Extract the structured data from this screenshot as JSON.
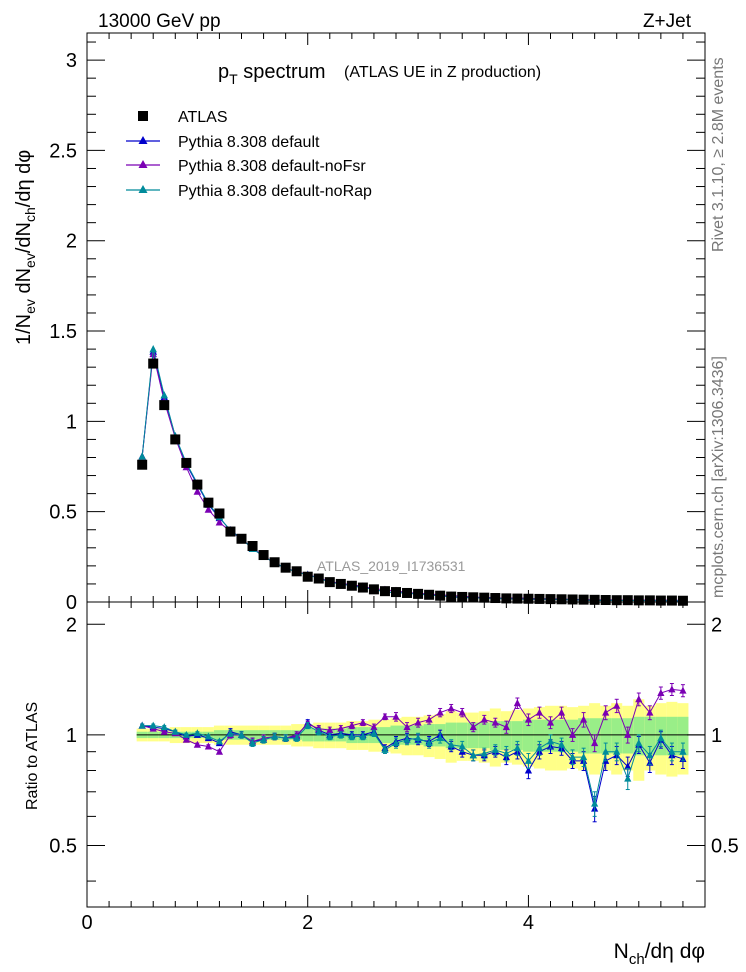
{
  "header": {
    "energy_label": "13000 GeV pp",
    "process_label": "Z+Jet"
  },
  "side_labels": {
    "rivet": "Rivet 3.1.10, ≥ 2.8M events",
    "mcplots": "mcplots.cern.ch [arXiv:1306.3436]"
  },
  "chart_data": {
    "type": "scatter",
    "title_main": "p",
    "title_sub": "T",
    "title_rest": " spectrum",
    "title_note": "(ATLAS UE in Z production)",
    "watermark": "ATLAS_2019_I1736531",
    "ylabel_main": "1/N",
    "ylabel_parts": [
      "ev",
      " dN",
      "ev",
      "/dN",
      "ch",
      "/dη dφ"
    ],
    "ratio_ylabel": "Ratio to ATLAS",
    "xlabel_main": "N",
    "xlabel_sub": "ch",
    "xlabel_rest": "/dη dφ",
    "xlim": [
      0,
      5.6
    ],
    "ylim_main": [
      0,
      3.15
    ],
    "ylim_ratio": [
      0.34,
      2.3
    ],
    "x_ticks": [
      0,
      2,
      4
    ],
    "x_tick_labels": [
      "0",
      "2",
      "4"
    ],
    "y_ticks_main": [
      0,
      0.5,
      1,
      1.5,
      2,
      2.5,
      3
    ],
    "y_tick_labels_main": [
      "0",
      "0.5",
      "1",
      "1.5",
      "2",
      "2.5",
      "3"
    ],
    "y_ticks_ratio": [
      0.5,
      1,
      2
    ],
    "y_tick_labels_ratio": [
      "0.5",
      "1",
      "2"
    ],
    "legend": {
      "position": "top-left",
      "entries": [
        {
          "label": "ATLAS",
          "marker": "square",
          "color": "#000000"
        },
        {
          "label": "Pythia 8.308 default",
          "marker": "triangle",
          "color": "#0000cc"
        },
        {
          "label": "Pythia 8.308 default-noFsr",
          "marker": "triangle",
          "color": "#7b00b4"
        },
        {
          "label": "Pythia 8.308 default-noRap",
          "marker": "triangle",
          "color": "#008b9b"
        }
      ]
    },
    "x": [
      0.5,
      0.6,
      0.7,
      0.8,
      0.9,
      1.0,
      1.1,
      1.2,
      1.3,
      1.4,
      1.5,
      1.6,
      1.7,
      1.8,
      1.9,
      2.0,
      2.1,
      2.2,
      2.3,
      2.4,
      2.5,
      2.6,
      2.7,
      2.8,
      2.9,
      3.0,
      3.1,
      3.2,
      3.3,
      3.4,
      3.5,
      3.6,
      3.7,
      3.8,
      3.9,
      4.0,
      4.1,
      4.2,
      4.3,
      4.4,
      4.5,
      4.6,
      4.7,
      4.8,
      4.9,
      5.0,
      5.1,
      5.2,
      5.3,
      5.4
    ],
    "atlas_values": [
      0.76,
      1.32,
      1.09,
      0.9,
      0.77,
      0.65,
      0.55,
      0.49,
      0.39,
      0.35,
      0.31,
      0.26,
      0.22,
      0.19,
      0.17,
      0.14,
      0.13,
      0.11,
      0.1,
      0.09,
      0.08,
      0.07,
      0.06,
      0.055,
      0.05,
      0.045,
      0.04,
      0.035,
      0.03,
      0.028,
      0.026,
      0.024,
      0.022,
      0.02,
      0.019,
      0.018,
      0.017,
      0.016,
      0.015,
      0.014,
      0.013,
      0.012,
      0.011,
      0.01,
      0.01,
      0.009,
      0.009,
      0.008,
      0.008,
      0.007
    ],
    "band_total": [
      0.04,
      0.04,
      0.04,
      0.05,
      0.05,
      0.05,
      0.05,
      0.06,
      0.06,
      0.06,
      0.06,
      0.06,
      0.06,
      0.06,
      0.07,
      0.07,
      0.08,
      0.08,
      0.08,
      0.09,
      0.09,
      0.1,
      0.1,
      0.11,
      0.12,
      0.12,
      0.13,
      0.14,
      0.16,
      0.15,
      0.15,
      0.16,
      0.18,
      0.16,
      0.17,
      0.18,
      0.19,
      0.2,
      0.2,
      0.19,
      0.2,
      0.22,
      0.2,
      0.22,
      0.2,
      0.25,
      0.2,
      0.22,
      0.23,
      0.22
    ],
    "band_stat": [
      0.02,
      0.02,
      0.02,
      0.02,
      0.02,
      0.02,
      0.02,
      0.03,
      0.03,
      0.03,
      0.03,
      0.03,
      0.03,
      0.03,
      0.03,
      0.04,
      0.04,
      0.04,
      0.04,
      0.05,
      0.05,
      0.05,
      0.05,
      0.06,
      0.06,
      0.06,
      0.07,
      0.07,
      0.08,
      0.08,
      0.08,
      0.08,
      0.09,
      0.09,
      0.09,
      0.1,
      0.1,
      0.1,
      0.1,
      0.1,
      0.11,
      0.11,
      0.11,
      0.11,
      0.11,
      0.12,
      0.12,
      0.12,
      0.12,
      0.12
    ],
    "series": [
      {
        "name": "Pythia 8.308 default",
        "color": "#0000cc",
        "ratio": [
          1.06,
          1.05,
          1.04,
          1.02,
          0.99,
          1.0,
          0.98,
          0.95,
          1.02,
          1.0,
          0.96,
          0.97,
          0.99,
          0.98,
          0.99,
          1.08,
          1.03,
          1.0,
          1.01,
          1.0,
          1.0,
          1.02,
          0.92,
          0.96,
          0.98,
          0.97,
          0.96,
          1.0,
          0.93,
          0.9,
          0.88,
          0.88,
          0.9,
          0.87,
          0.9,
          0.8,
          0.9,
          0.93,
          0.92,
          0.85,
          0.85,
          0.63,
          0.85,
          0.88,
          0.82,
          0.94,
          0.84,
          0.97,
          0.88,
          0.86
        ],
        "err": [
          0.01,
          0.01,
          0.01,
          0.01,
          0.01,
          0.01,
          0.01,
          0.01,
          0.02,
          0.02,
          0.02,
          0.02,
          0.02,
          0.02,
          0.02,
          0.02,
          0.02,
          0.02,
          0.02,
          0.02,
          0.02,
          0.02,
          0.02,
          0.03,
          0.03,
          0.03,
          0.03,
          0.03,
          0.03,
          0.03,
          0.03,
          0.03,
          0.03,
          0.04,
          0.04,
          0.04,
          0.04,
          0.04,
          0.04,
          0.04,
          0.05,
          0.05,
          0.05,
          0.05,
          0.05,
          0.05,
          0.05,
          0.05,
          0.05,
          0.05
        ]
      },
      {
        "name": "Pythia 8.308 default-noFsr",
        "color": "#7b00b4",
        "ratio": [
          1.06,
          1.04,
          1.02,
          1.01,
          0.97,
          0.94,
          0.93,
          0.9,
          1.0,
          1.0,
          0.96,
          0.98,
          0.99,
          0.98,
          1.0,
          1.07,
          1.04,
          1.03,
          1.04,
          1.06,
          1.08,
          1.05,
          1.12,
          1.12,
          1.05,
          1.08,
          1.1,
          1.15,
          1.18,
          1.15,
          1.05,
          1.1,
          1.08,
          1.05,
          1.22,
          1.1,
          1.15,
          1.08,
          1.15,
          1.0,
          1.1,
          0.95,
          1.15,
          1.2,
          1.0,
          1.25,
          1.15,
          1.3,
          1.33,
          1.32
        ],
        "err": [
          0.01,
          0.01,
          0.01,
          0.01,
          0.01,
          0.01,
          0.01,
          0.01,
          0.02,
          0.02,
          0.02,
          0.02,
          0.02,
          0.02,
          0.02,
          0.02,
          0.02,
          0.02,
          0.02,
          0.02,
          0.02,
          0.02,
          0.02,
          0.03,
          0.03,
          0.03,
          0.03,
          0.03,
          0.03,
          0.03,
          0.03,
          0.03,
          0.03,
          0.04,
          0.04,
          0.04,
          0.04,
          0.04,
          0.04,
          0.04,
          0.05,
          0.05,
          0.05,
          0.05,
          0.05,
          0.05,
          0.05,
          0.05,
          0.05,
          0.05
        ]
      },
      {
        "name": "Pythia 8.308 default-noRap",
        "color": "#008b9b",
        "ratio": [
          1.06,
          1.06,
          1.05,
          1.02,
          1.0,
          1.01,
          0.99,
          0.96,
          1.01,
          1.0,
          0.95,
          0.97,
          0.99,
          0.98,
          0.98,
          1.06,
          1.02,
          0.99,
          1.0,
          0.99,
          0.99,
          1.01,
          0.91,
          0.95,
          0.97,
          0.98,
          0.95,
          0.98,
          0.94,
          0.93,
          0.88,
          0.89,
          0.91,
          0.89,
          0.92,
          0.85,
          0.92,
          0.96,
          0.94,
          0.87,
          0.87,
          0.65,
          0.9,
          0.9,
          0.76,
          0.95,
          0.88,
          0.98,
          0.9,
          0.9
        ],
        "err": [
          0.01,
          0.01,
          0.01,
          0.01,
          0.01,
          0.01,
          0.01,
          0.01,
          0.02,
          0.02,
          0.02,
          0.02,
          0.02,
          0.02,
          0.02,
          0.02,
          0.02,
          0.02,
          0.02,
          0.02,
          0.02,
          0.02,
          0.02,
          0.03,
          0.03,
          0.03,
          0.03,
          0.03,
          0.03,
          0.03,
          0.03,
          0.03,
          0.03,
          0.04,
          0.04,
          0.04,
          0.04,
          0.04,
          0.04,
          0.04,
          0.05,
          0.05,
          0.05,
          0.05,
          0.05,
          0.05,
          0.05,
          0.05,
          0.05,
          0.05
        ]
      }
    ]
  }
}
